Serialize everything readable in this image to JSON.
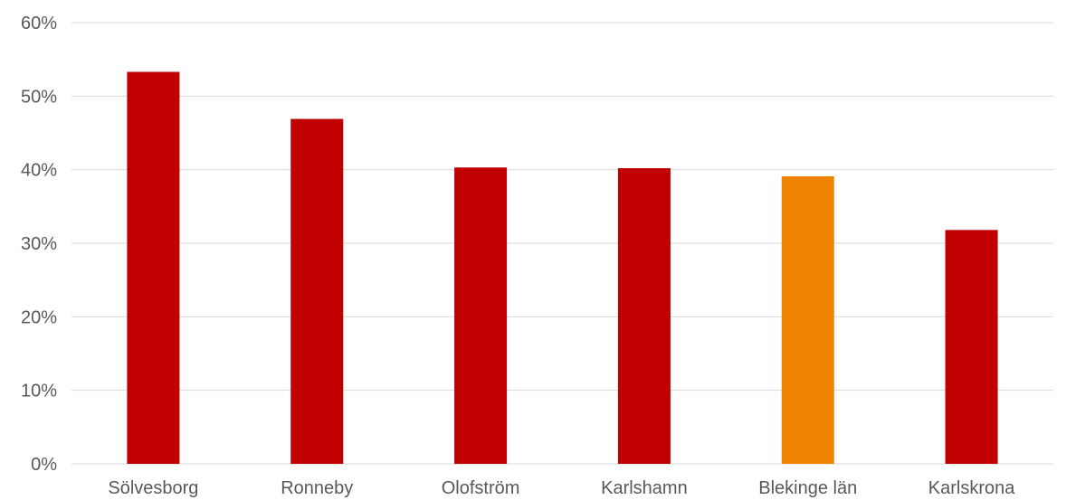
{
  "chart_data": {
    "type": "bar",
    "categories": [
      "Sölvesborg",
      "Ronneby",
      "Olofström",
      "Karlshamn",
      "Blekinge län",
      "Karlskrona"
    ],
    "values": [
      53.3,
      46.9,
      40.3,
      40.2,
      39.1,
      31.8
    ],
    "y_ticks": [
      "0%",
      "10%",
      "20%",
      "30%",
      "40%",
      "50%",
      "60%"
    ],
    "ylim": [
      0,
      60
    ],
    "grid": true,
    "colors": {
      "default": "#c00000",
      "highlight": "#f08400",
      "highlight_index": 4
    }
  }
}
